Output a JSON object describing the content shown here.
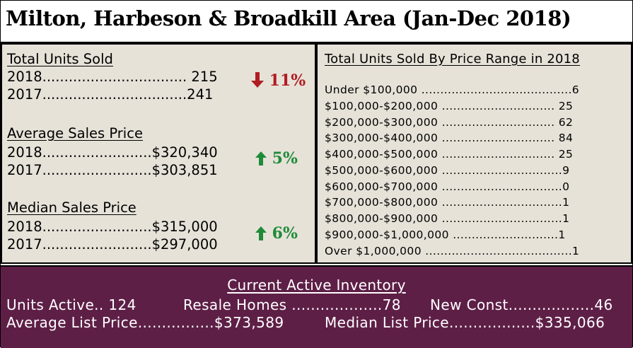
{
  "title": "Milton, Harbeson & Broadkill Area (Jan-Dec 2018)",
  "total_units_sold": {
    "label": "Total Units Sold",
    "row2018": "2018.................................  215",
    "row2017": "2017.................................241",
    "change": "11%",
    "direction": "down"
  },
  "average_sales_price": {
    "label": "Average Sales Price",
    "row2018": "2018.........................$320,340",
    "row2017": "2017.........................$303,851",
    "change": "5%",
    "direction": "up"
  },
  "median_sales_price": {
    "label": "Median Sales Price",
    "row2018": "2018.........................$315,000",
    "row2017": "2017.........................$297,000",
    "change": "6%",
    "direction": "up"
  },
  "price_range": {
    "label": "Total Units Sold By Price Range in 2018",
    "rows": [
      "Under $100,000 ........................................6",
      "$100,000-$200,000 .............................. 25",
      "$200,000-$300,000 .............................. 62",
      "$300,000-$400,000 .............................. 84",
      "$400,000-$500,000 .............................. 25",
      "$500,000-$600,000 ................................9",
      "$600,000-$700,000 ................................0",
      "$700,000-$800,000 ................................1",
      "$800,000-$900,000 ................................1",
      "$900,000-$1,000,000 ............................1",
      "Over $1,000,000 .......................................1"
    ]
  },
  "inventory": {
    "label": "Current Active Inventory",
    "units_active": "Units Active.. 124",
    "resale_homes": "Resale Homes ...................78",
    "new_const": "New Const..................46",
    "average_list_price": "Average List Price................$373,589",
    "median_list_price": "Median List Price..................$335,066"
  },
  "colors": {
    "panel_bg": "#e6e2d8",
    "inventory_bg": "#5e1f47",
    "down": "#b01d22",
    "up": "#1f8b39"
  },
  "icons": {
    "down": "arrow-down-icon",
    "up": "arrow-up-icon"
  }
}
